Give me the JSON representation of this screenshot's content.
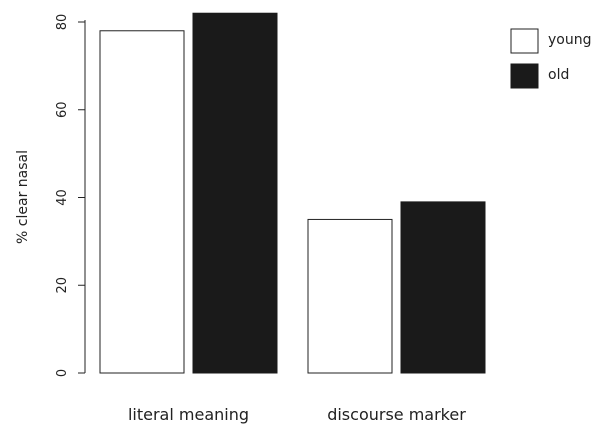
{
  "chart_data": {
    "type": "bar",
    "title": "",
    "xlabel": "",
    "ylabel": "% clear nasal",
    "categories": [
      "literal meaning",
      "discourse marker"
    ],
    "series": [
      {
        "name": "young",
        "values": [
          78,
          35
        ],
        "color": "#ffffff",
        "stroke": "#222222"
      },
      {
        "name": "old",
        "values": [
          82,
          39
        ],
        "color": "#1a1a1a",
        "stroke": "#1a1a1a"
      }
    ],
    "ylim": [
      0,
      82
    ],
    "yticks": [
      0,
      20,
      40,
      60,
      80
    ],
    "grid": false,
    "legend_position": "top-right"
  }
}
